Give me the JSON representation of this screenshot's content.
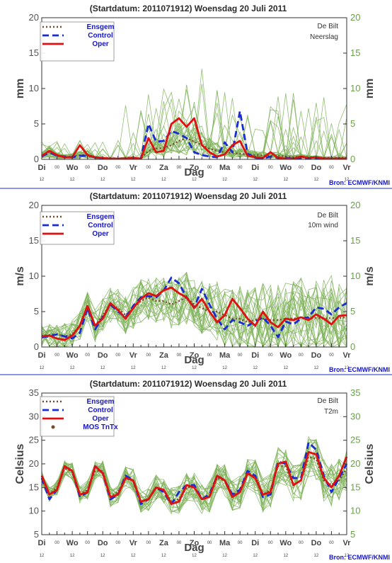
{
  "colors": {
    "members": "#7fb35a",
    "ensgem": "#7a4a2a",
    "control": "#1a2bd6",
    "oper": "#e01010",
    "mos": "#7a4a2a",
    "axis": "#333333",
    "ytick_right": "#6aa04a",
    "legend_text": "#1515c8",
    "separator": "#1a2bd6"
  },
  "x_day_labels": [
    "Di",
    "Wo",
    "Do",
    "Vr",
    "Za",
    "Zo",
    "Ma",
    "Di",
    "Wo",
    "Do",
    "Vr"
  ],
  "x_hour_label": "12",
  "x_midnight_marker": "00",
  "x_axis_label": "Dag",
  "chart_data": [
    {
      "type": "line",
      "title": "(Startdatum: 2011071912)   Woensdag  20 Juli      2011",
      "station": "De Bilt",
      "variable": "Neerslag",
      "ylabel": "mm",
      "ylim": [
        0,
        20
      ],
      "yticks": [
        0,
        5,
        10,
        15,
        20
      ],
      "legend": [
        "Ensgem",
        "Control",
        "Oper"
      ],
      "source": "Bron: ECMWF/KNMI",
      "series": [
        {
          "name": "Ensgem",
          "values": [
            0.5,
            1.0,
            0.5,
            0.3,
            0.4,
            0.6,
            0.6,
            0.2,
            0.1,
            0.1,
            0.1,
            0.2,
            0.2,
            0.1,
            1.2,
            1.5,
            1.6,
            2.0,
            2.6,
            3.0,
            2.5,
            2.0,
            1.5,
            1.2,
            1.0,
            0.9,
            0.8,
            0.7,
            0.6,
            0.6,
            0.5,
            0.5,
            0.4,
            0.3,
            0.4,
            0.3,
            0.3,
            0.2,
            0.2,
            0.2,
            0.2
          ]
        },
        {
          "name": "Control",
          "values": [
            0.4,
            1.0,
            0.5,
            0.4,
            0.3,
            0.5,
            0.5,
            0.3,
            0.1,
            0.1,
            0.1,
            0.1,
            0.2,
            0.1,
            5.0,
            2.5,
            2.6,
            4.0,
            3.6,
            3.0,
            1.0,
            0.6,
            0.4,
            0.3,
            2.4,
            1.0,
            6.8,
            0.8,
            0.2,
            0.1,
            0.4,
            0.2,
            0.2,
            0.1,
            0.2,
            0.1,
            0.2,
            0.1,
            0.1,
            0.1,
            0.1
          ]
        },
        {
          "name": "Oper",
          "values": [
            0.5,
            1.2,
            0.6,
            0.3,
            0.3,
            2.0,
            0.6,
            0.3,
            0.2,
            0.1,
            0.1,
            0.1,
            0.2,
            0.1,
            3.0,
            1.0,
            1.2,
            5.0,
            5.8,
            4.6,
            5.8,
            2.0,
            1.0,
            0.4,
            0.7,
            2.0,
            2.6,
            0.5,
            0.3,
            0.2,
            1.0,
            0.2,
            0.1,
            0.1,
            0.4,
            0.2,
            0.3,
            0.1,
            0.1,
            0.1,
            0.1
          ]
        }
      ]
    },
    {
      "type": "line",
      "title": "(Startdatum: 2011071912)   Woensdag  20 Juli      2011",
      "station": "De Bilt",
      "variable": "10m wind",
      "ylabel": "m/s",
      "ylim": [
        0,
        20
      ],
      "yticks": [
        0,
        5,
        10,
        15,
        20
      ],
      "legend": [
        "Ensgem",
        "Control",
        "Oper"
      ],
      "source": "Bron: ECMWF/KNMI",
      "series": [
        {
          "name": "Ensgem",
          "values": [
            1.6,
            1.7,
            1.8,
            1.5,
            1.8,
            3.0,
            5.5,
            3.0,
            4.5,
            6.0,
            5.5,
            4.5,
            5.5,
            6.5,
            7.0,
            6.5,
            6.5,
            6.0,
            6.5,
            7.0,
            6.0,
            5.5,
            5.0,
            5.0,
            4.5,
            4.0,
            4.0,
            3.5,
            3.8,
            4.0,
            3.8,
            3.8,
            4.0,
            4.0,
            4.2,
            4.0,
            4.1,
            4.0,
            4.1,
            4.1,
            4.2
          ]
        },
        {
          "name": "Control",
          "values": [
            1.4,
            1.5,
            1.8,
            1.5,
            1.2,
            2.0,
            5.5,
            2.5,
            4.2,
            6.0,
            5.0,
            4.2,
            5.8,
            7.0,
            7.2,
            7.0,
            8.0,
            9.8,
            9.0,
            7.0,
            5.6,
            8.2,
            6.0,
            4.0,
            2.5,
            3.8,
            3.5,
            3.0,
            3.6,
            4.2,
            3.0,
            1.4,
            3.6,
            3.2,
            4.0,
            4.2,
            5.6,
            5.4,
            4.6,
            5.6,
            6.2
          ]
        },
        {
          "name": "Oper",
          "values": [
            1.5,
            1.6,
            1.2,
            1.0,
            1.6,
            3.0,
            5.8,
            3.0,
            4.0,
            6.2,
            5.2,
            4.0,
            5.5,
            6.8,
            7.6,
            7.2,
            8.0,
            8.4,
            7.6,
            7.0,
            5.5,
            6.8,
            5.0,
            3.5,
            4.5,
            6.8,
            5.5,
            4.0,
            3.0,
            5.0,
            3.5,
            2.8,
            4.0,
            3.8,
            4.2,
            3.8,
            4.6,
            4.0,
            3.2,
            4.4,
            4.5
          ]
        }
      ]
    },
    {
      "type": "line",
      "title": "(Startdatum: 2011071912)   Woensdag  20 Juli      2011",
      "station": "De Bilt",
      "variable": "T2m",
      "ylabel": "Celsius",
      "ylim": [
        5,
        35
      ],
      "yticks": [
        5,
        10,
        15,
        20,
        25,
        30,
        35
      ],
      "legend": [
        "Ensgem",
        "Control",
        "Oper",
        "MOS TnTx"
      ],
      "source": "Bron: ECMWF/KNMI",
      "series": [
        {
          "name": "Ensgem",
          "values": [
            17.0,
            13.5,
            15.0,
            19.0,
            18.5,
            13.5,
            14.5,
            18.5,
            18.5,
            13.0,
            14.0,
            17.0,
            16.5,
            12.0,
            12.5,
            15.0,
            14.5,
            12.0,
            12.5,
            15.0,
            15.0,
            12.5,
            13.0,
            17.0,
            16.5,
            13.5,
            14.0,
            18.0,
            17.5,
            13.5,
            14.5,
            19.5,
            19.5,
            15.5,
            16.5,
            21.5,
            21.0,
            16.5,
            15.5,
            16.5,
            19.0
          ]
        },
        {
          "name": "Control",
          "values": [
            17.0,
            12.5,
            14.5,
            19.5,
            18.5,
            13.0,
            14.0,
            19.5,
            18.0,
            12.5,
            13.5,
            17.5,
            16.5,
            11.5,
            12.5,
            15.0,
            14.0,
            11.5,
            14.0,
            15.5,
            15.5,
            12.5,
            13.5,
            17.5,
            16.5,
            13.5,
            14.5,
            18.5,
            17.5,
            13.0,
            13.5,
            20.5,
            20.0,
            17.0,
            17.0,
            24.5,
            23.0,
            17.5,
            14.0,
            17.0,
            20.0
          ]
        },
        {
          "name": "Oper",
          "values": [
            17.5,
            13.5,
            14.5,
            19.5,
            18.5,
            13.5,
            14.0,
            19.5,
            18.0,
            13.0,
            13.5,
            17.0,
            16.5,
            12.0,
            12.5,
            15.0,
            14.5,
            11.5,
            12.0,
            15.5,
            15.0,
            12.5,
            13.0,
            17.5,
            16.5,
            13.0,
            14.0,
            18.0,
            17.0,
            13.5,
            14.0,
            20.0,
            20.5,
            15.5,
            16.5,
            22.5,
            22.0,
            17.0,
            15.0,
            17.5,
            21.5
          ]
        }
      ]
    }
  ]
}
